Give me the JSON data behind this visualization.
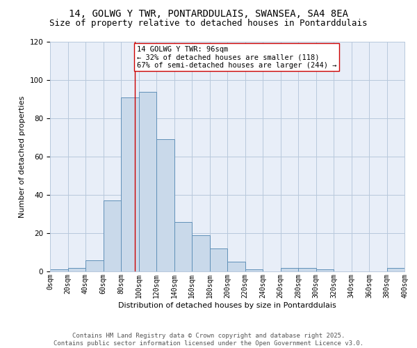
{
  "title_line1": "14, GOLWG Y TWR, PONTARDDULAIS, SWANSEA, SA4 8EA",
  "title_line2": "Size of property relative to detached houses in Pontarddulais",
  "xlabel": "Distribution of detached houses by size in Pontarddulais",
  "ylabel": "Number of detached properties",
  "bin_edges": [
    0,
    20,
    40,
    60,
    80,
    100,
    120,
    140,
    160,
    180,
    200,
    220,
    240,
    260,
    280,
    300,
    320,
    340,
    360,
    380,
    400
  ],
  "bar_heights": [
    1,
    2,
    6,
    37,
    91,
    94,
    69,
    26,
    19,
    12,
    5,
    1,
    0,
    2,
    2,
    1,
    0,
    0,
    0,
    2
  ],
  "bar_face_color": "#c9d9ea",
  "bar_edge_color": "#6090b8",
  "vline_x": 96,
  "vline_color": "#cc0000",
  "annotation_text": "14 GOLWG Y TWR: 96sqm\n← 32% of detached houses are smaller (118)\n67% of semi-detached houses are larger (244) →",
  "annotation_box_color": "#ffffff",
  "annotation_box_edgecolor": "#cc0000",
  "annotation_fontsize": 7.5,
  "ylim": [
    0,
    120
  ],
  "yticks": [
    0,
    20,
    40,
    60,
    80,
    100,
    120
  ],
  "tick_labels": [
    "0sqm",
    "20sqm",
    "40sqm",
    "60sqm",
    "80sqm",
    "100sqm",
    "120sqm",
    "140sqm",
    "160sqm",
    "180sqm",
    "200sqm",
    "220sqm",
    "240sqm",
    "260sqm",
    "280sqm",
    "300sqm",
    "320sqm",
    "340sqm",
    "360sqm",
    "380sqm",
    "400sqm"
  ],
  "grid_color": "#b8c8dc",
  "bg_color": "#e8eef8",
  "footer_text": "Contains HM Land Registry data © Crown copyright and database right 2025.\nContains public sector information licensed under the Open Government Licence v3.0.",
  "title_fontsize": 10,
  "subtitle_fontsize": 9,
  "xlabel_fontsize": 8,
  "ylabel_fontsize": 8,
  "footer_fontsize": 6.5
}
